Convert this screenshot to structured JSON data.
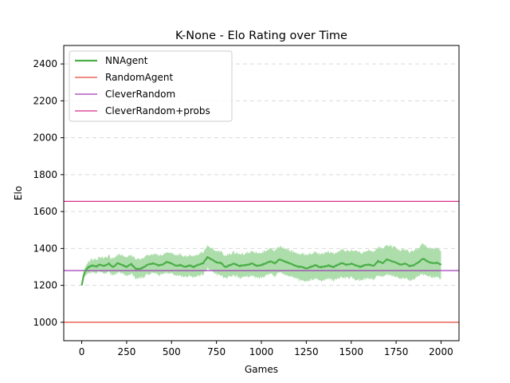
{
  "chart_data": {
    "type": "line",
    "title": "K-None - Elo Rating over Time",
    "xlabel": "Games",
    "ylabel": "Elo",
    "xlim": [
      -100,
      2100
    ],
    "ylim": [
      900,
      2500
    ],
    "xticks": [
      0,
      250,
      500,
      750,
      1000,
      1250,
      1500,
      1750,
      2000
    ],
    "yticks": [
      1000,
      1200,
      1400,
      1600,
      1800,
      2000,
      2200,
      2400
    ],
    "grid": "horizontal-dashed",
    "legend_position": "top-left",
    "series": [
      {
        "name": "NNAgent",
        "kind": "mean-with-band",
        "color": "#4daf4a",
        "band_color": "#9fd79c",
        "x": [
          0,
          10,
          20,
          30,
          40,
          60,
          80,
          100,
          125,
          150,
          175,
          200,
          225,
          250,
          275,
          300,
          325,
          350,
          375,
          400,
          425,
          450,
          475,
          500,
          525,
          550,
          575,
          600,
          625,
          650,
          675,
          700,
          725,
          750,
          775,
          800,
          825,
          850,
          875,
          900,
          925,
          950,
          975,
          1000,
          1025,
          1050,
          1075,
          1100,
          1125,
          1150,
          1175,
          1200,
          1225,
          1250,
          1275,
          1300,
          1325,
          1350,
          1375,
          1400,
          1425,
          1450,
          1475,
          1500,
          1525,
          1550,
          1575,
          1600,
          1625,
          1650,
          1675,
          1700,
          1725,
          1750,
          1775,
          1800,
          1825,
          1850,
          1875,
          1900,
          1925,
          1950,
          1975,
          2000
        ],
        "mean": [
          1200,
          1250,
          1278,
          1292,
          1300,
          1308,
          1302,
          1312,
          1305,
          1318,
          1300,
          1320,
          1310,
          1300,
          1315,
          1290,
          1288,
          1302,
          1315,
          1320,
          1308,
          1312,
          1328,
          1318,
          1305,
          1310,
          1300,
          1308,
          1300,
          1312,
          1320,
          1352,
          1340,
          1325,
          1322,
          1298,
          1310,
          1318,
          1305,
          1308,
          1312,
          1318,
          1305,
          1310,
          1320,
          1330,
          1320,
          1340,
          1332,
          1322,
          1312,
          1302,
          1300,
          1290,
          1300,
          1310,
          1298,
          1302,
          1308,
          1298,
          1312,
          1322,
          1310,
          1318,
          1308,
          1300,
          1310,
          1312,
          1305,
          1332,
          1318,
          1342,
          1330,
          1322,
          1312,
          1318,
          1305,
          1310,
          1325,
          1345,
          1330,
          1320,
          1322,
          1312
        ],
        "lower": [
          1200,
          1230,
          1255,
          1262,
          1268,
          1270,
          1265,
          1272,
          1262,
          1275,
          1255,
          1272,
          1262,
          1250,
          1265,
          1238,
          1235,
          1250,
          1262,
          1268,
          1255,
          1258,
          1272,
          1262,
          1248,
          1252,
          1245,
          1250,
          1242,
          1252,
          1262,
          1290,
          1278,
          1262,
          1260,
          1235,
          1248,
          1255,
          1242,
          1245,
          1248,
          1252,
          1238,
          1242,
          1252,
          1262,
          1250,
          1272,
          1262,
          1252,
          1242,
          1232,
          1228,
          1218,
          1228,
          1240,
          1225,
          1230,
          1236,
          1225,
          1240,
          1248,
          1236,
          1245,
          1232,
          1225,
          1236,
          1236,
          1230,
          1255,
          1240,
          1265,
          1252,
          1245,
          1235,
          1240,
          1228,
          1232,
          1248,
          1262,
          1250,
          1242,
          1245,
          1235
        ],
        "upper": [
          1200,
          1268,
          1298,
          1318,
          1330,
          1345,
          1340,
          1352,
          1348,
          1360,
          1345,
          1368,
          1358,
          1350,
          1365,
          1342,
          1340,
          1355,
          1368,
          1372,
          1360,
          1365,
          1382,
          1375,
          1362,
          1368,
          1355,
          1365,
          1358,
          1370,
          1380,
          1410,
          1400,
          1388,
          1385,
          1360,
          1372,
          1380,
          1368,
          1372,
          1376,
          1384,
          1372,
          1378,
          1388,
          1398,
          1390,
          1408,
          1402,
          1392,
          1382,
          1372,
          1372,
          1362,
          1372,
          1380,
          1370,
          1374,
          1380,
          1372,
          1384,
          1396,
          1384,
          1392,
          1384,
          1375,
          1384,
          1388,
          1380,
          1408,
          1395,
          1418,
          1408,
          1400,
          1390,
          1396,
          1382,
          1388,
          1402,
          1425,
          1410,
          1398,
          1400,
          1390
        ]
      },
      {
        "name": "RandomAgent",
        "kind": "hline",
        "y": 1000,
        "color": "#e8443a"
      },
      {
        "name": "CleverRandom",
        "kind": "hline",
        "y": 1280,
        "color": "#a23cb5"
      },
      {
        "name": "CleverRandom+probs",
        "kind": "hline",
        "y": 1655,
        "color": "#d62f8c"
      }
    ]
  }
}
